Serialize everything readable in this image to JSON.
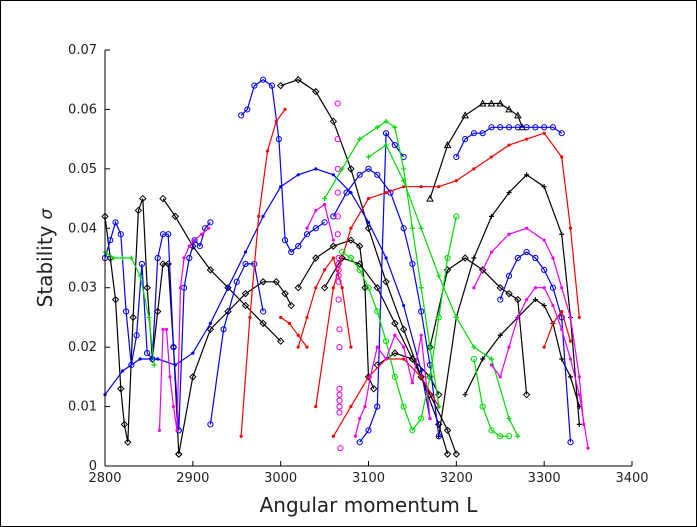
{
  "chart_data": {
    "type": "line",
    "title": "",
    "xlabel": "Angular momentum L",
    "ylabel_text": "Stability",
    "ylabel_symbol": "σ",
    "xlim": [
      2800,
      3400
    ],
    "ylim": [
      0,
      0.07
    ],
    "xticks": [
      "2800",
      "2900",
      "3000",
      "3100",
      "3200",
      "3300",
      "3400"
    ],
    "yticks": [
      "0",
      "0.01",
      "0.02",
      "0.03",
      "0.04",
      "0.05",
      "0.06",
      "0.07"
    ],
    "grid": false,
    "legend": "none",
    "series": [
      {
        "color": "#000000",
        "marker": "diamond",
        "x": [
          2800,
          2806,
          2812,
          2818,
          2822,
          2826,
          2832,
          2838,
          2843,
          2848,
          2854,
          2860,
          2866,
          2872,
          2878,
          2884
        ],
        "y": [
          0.042,
          0.035,
          0.028,
          0.013,
          0.007,
          0.004,
          0.025,
          0.043,
          0.045,
          0.03,
          0.018,
          0.026,
          0.034,
          0.034,
          0.02,
          0.002
        ]
      },
      {
        "color": "#000000",
        "marker": "diamond",
        "x": [
          2866,
          2880,
          2900,
          2920,
          2940,
          2960,
          2980,
          3000
        ],
        "y": [
          0.045,
          0.042,
          0.037,
          0.033,
          0.03,
          0.027,
          0.024,
          0.021
        ]
      },
      {
        "color": "#000000",
        "marker": "diamond",
        "x": [
          2884,
          2900,
          2920,
          2940,
          2960,
          2980,
          2995,
          3005,
          3012
        ],
        "y": [
          0.002,
          0.015,
          0.023,
          0.026,
          0.029,
          0.031,
          0.031,
          0.029,
          0.027
        ]
      },
      {
        "color": "#000000",
        "marker": "diamond",
        "x": [
          3000,
          3020,
          3040,
          3060,
          3080,
          3100,
          3120,
          3140,
          3160,
          3180,
          3190
        ],
        "y": [
          0.064,
          0.065,
          0.063,
          0.058,
          0.05,
          0.04,
          0.031,
          0.023,
          0.015,
          0.007,
          0.002
        ]
      },
      {
        "color": "#000000",
        "marker": "diamond",
        "x": [
          3020,
          3040,
          3060,
          3080,
          3090,
          3096,
          3100,
          3106
        ],
        "y": [
          0.03,
          0.035,
          0.037,
          0.038,
          0.037,
          0.03,
          0.015,
          0.013
        ]
      },
      {
        "color": "#000000",
        "marker": "diamond",
        "x": [
          3050,
          3070,
          3090,
          3110,
          3130,
          3150,
          3170,
          3190,
          3200
        ],
        "y": [
          0.03,
          0.035,
          0.034,
          0.03,
          0.024,
          0.018,
          0.012,
          0.006,
          0.002
        ]
      },
      {
        "color": "#000000",
        "marker": "diamond",
        "x": [
          3110,
          3130,
          3150,
          3170,
          3180
        ],
        "y": [
          0.017,
          0.019,
          0.018,
          0.015,
          0.012
        ]
      },
      {
        "color": "#000000",
        "marker": "diamond",
        "x": [
          3170,
          3190,
          3210,
          3230,
          3250,
          3260,
          3270,
          3280
        ],
        "y": [
          0.02,
          0.033,
          0.035,
          0.033,
          0.03,
          0.029,
          0.028,
          0.012
        ]
      },
      {
        "color": "#000000",
        "marker": "triangle",
        "x": [
          3170,
          3190,
          3210,
          3230,
          3240,
          3250,
          3260,
          3270,
          3275
        ],
        "y": [
          0.045,
          0.054,
          0.059,
          0.061,
          0.061,
          0.061,
          0.06,
          0.059,
          0.057
        ]
      },
      {
        "color": "#000000",
        "marker": "plus",
        "x": [
          3180,
          3200,
          3220,
          3240,
          3260,
          3280,
          3300,
          3320,
          3330,
          3340
        ],
        "y": [
          0.005,
          0.025,
          0.035,
          0.042,
          0.046,
          0.049,
          0.047,
          0.039,
          0.025,
          0.007
        ]
      },
      {
        "color": "#000000",
        "marker": "plus",
        "x": [
          3210,
          3230,
          3250,
          3270,
          3290,
          3300,
          3310,
          3320,
          3330,
          3340
        ],
        "y": [
          0.012,
          0.018,
          0.022,
          0.025,
          0.028,
          0.027,
          0.024,
          0.018,
          0.015,
          0.01
        ]
      },
      {
        "color": "#0000ff",
        "marker": "circle",
        "x": [
          2800,
          2806,
          2812,
          2818,
          2824,
          2830,
          2836,
          2842,
          2848,
          2854,
          2860,
          2866,
          2872,
          2878,
          2884
        ],
        "y": [
          0.035,
          0.038,
          0.041,
          0.039,
          0.026,
          0.017,
          0.022,
          0.034,
          0.019,
          0.018,
          0.035,
          0.039,
          0.039,
          0.02,
          0.006
        ]
      },
      {
        "color": "#0000ff",
        "marker": "circle",
        "x": [
          2884,
          2890,
          2896,
          2902,
          2908,
          2914,
          2920
        ],
        "y": [
          0.006,
          0.03,
          0.035,
          0.038,
          0.037,
          0.04,
          0.041
        ]
      },
      {
        "color": "#0000ff",
        "marker": "dot",
        "x": [
          2800,
          2820,
          2840,
          2860,
          2880,
          2900,
          2920,
          2940,
          2960,
          2980,
          3000,
          3020,
          3040,
          3060,
          3080,
          3100,
          3120,
          3140,
          3160,
          3170
        ],
        "y": [
          0.012,
          0.016,
          0.018,
          0.018,
          0.017,
          0.019,
          0.024,
          0.03,
          0.036,
          0.042,
          0.047,
          0.049,
          0.05,
          0.049,
          0.046,
          0.041,
          0.035,
          0.027,
          0.016,
          0.008
        ]
      },
      {
        "color": "#0000ff",
        "marker": "circle",
        "x": [
          2920,
          2935,
          2950,
          2960,
          2970,
          2980
        ],
        "y": [
          0.007,
          0.023,
          0.031,
          0.034,
          0.034,
          0.026
        ]
      },
      {
        "color": "#0000ff",
        "marker": "circle",
        "x": [
          2955,
          2962,
          2970,
          2980,
          2990,
          2998,
          3005,
          3012,
          3020,
          3030,
          3040,
          3050
        ],
        "y": [
          0.059,
          0.06,
          0.064,
          0.065,
          0.064,
          0.055,
          0.038,
          0.036,
          0.037,
          0.039,
          0.04,
          0.041
        ]
      },
      {
        "color": "#0000ff",
        "marker": "circle",
        "x": [
          3060,
          3075,
          3090,
          3100,
          3110,
          3125,
          3140,
          3150,
          3160,
          3170,
          3180
        ],
        "y": [
          0.042,
          0.046,
          0.049,
          0.05,
          0.049,
          0.046,
          0.04,
          0.034,
          0.026,
          0.017,
          0.005
        ]
      },
      {
        "color": "#0000ff",
        "marker": "circle",
        "x": [
          3090,
          3100,
          3110,
          3120,
          3130,
          3140
        ],
        "y": [
          0.004,
          0.006,
          0.01,
          0.056,
          0.054,
          0.052
        ]
      },
      {
        "color": "#0000ff",
        "marker": "circle",
        "x": [
          3200,
          3210,
          3220,
          3230,
          3240,
          3250,
          3260,
          3270,
          3280,
          3290,
          3300,
          3310,
          3320
        ],
        "y": [
          0.052,
          0.055,
          0.056,
          0.056,
          0.057,
          0.057,
          0.057,
          0.057,
          0.057,
          0.057,
          0.057,
          0.057,
          0.056
        ]
      },
      {
        "color": "#0000ff",
        "marker": "circle",
        "x": [
          3250,
          3260,
          3270,
          3280,
          3290,
          3300,
          3310,
          3320,
          3330
        ],
        "y": [
          0.028,
          0.032,
          0.035,
          0.036,
          0.035,
          0.033,
          0.03,
          0.025,
          0.004
        ]
      },
      {
        "color": "#ff0000",
        "marker": "dot",
        "x": [
          2955,
          2965,
          2975,
          2985,
          2995,
          3005
        ],
        "y": [
          0.005,
          0.025,
          0.042,
          0.053,
          0.058,
          0.06
        ]
      },
      {
        "color": "#ff0000",
        "marker": "dot",
        "x": [
          3000,
          3010,
          3020,
          3030
        ],
        "y": [
          0.025,
          0.024,
          0.022,
          0.02
        ]
      },
      {
        "color": "#ff0000",
        "marker": "dot",
        "x": [
          3020,
          3030,
          3040,
          3050,
          3060,
          3070,
          3080
        ],
        "y": [
          0.02,
          0.025,
          0.03,
          0.033,
          0.035,
          0.03,
          0.02
        ]
      },
      {
        "color": "#ff0000",
        "marker": "dot",
        "x": [
          3040,
          3060,
          3080,
          3100,
          3120,
          3140,
          3160,
          3180,
          3200,
          3220,
          3240,
          3260,
          3280,
          3300,
          3320,
          3330,
          3340
        ],
        "y": [
          0.01,
          0.03,
          0.04,
          0.045,
          0.046,
          0.047,
          0.047,
          0.047,
          0.048,
          0.05,
          0.052,
          0.054,
          0.055,
          0.056,
          0.052,
          0.04,
          0.025
        ]
      },
      {
        "color": "#ff0000",
        "marker": "dot",
        "x": [
          3060,
          3080,
          3100,
          3120,
          3140,
          3160,
          3180
        ],
        "y": [
          0.005,
          0.01,
          0.015,
          0.018,
          0.018,
          0.015,
          0.01
        ]
      },
      {
        "color": "#ff0000",
        "marker": "dot",
        "x": [
          3300,
          3310,
          3320,
          3330
        ],
        "y": [
          0.02,
          0.024,
          0.026,
          0.021
        ]
      },
      {
        "color": "#00dd00",
        "marker": "plus",
        "x": [
          2800,
          2810,
          2820,
          2830,
          2840,
          2850,
          2856
        ],
        "y": [
          0.036,
          0.035,
          0.035,
          0.035,
          0.032,
          0.025,
          0.017
        ]
      },
      {
        "color": "#00dd00",
        "marker": "plus",
        "x": [
          3050,
          3070,
          3090,
          3110,
          3120,
          3130,
          3140,
          3150,
          3160,
          3170,
          3180
        ],
        "y": [
          0.045,
          0.05,
          0.055,
          0.057,
          0.058,
          0.057,
          0.05,
          0.04,
          0.03,
          0.02,
          0.01
        ]
      },
      {
        "color": "#00dd00",
        "marker": "circle",
        "x": [
          3070,
          3080,
          3090,
          3100,
          3110,
          3120,
          3130,
          3140,
          3150,
          3160,
          3170,
          3180,
          3190,
          3200
        ],
        "y": [
          0.036,
          0.035,
          0.033,
          0.03,
          0.026,
          0.021,
          0.015,
          0.01,
          0.006,
          0.008,
          0.015,
          0.025,
          0.035,
          0.042
        ]
      },
      {
        "color": "#00dd00",
        "marker": "plus",
        "x": [
          3100,
          3120,
          3140,
          3160,
          3180,
          3200,
          3220,
          3240,
          3260,
          3270
        ],
        "y": [
          0.052,
          0.054,
          0.048,
          0.04,
          0.032,
          0.025,
          0.02,
          0.018,
          0.008,
          0.005
        ]
      },
      {
        "color": "#00dd00",
        "marker": "circle",
        "x": [
          3220,
          3230,
          3240,
          3250,
          3260
        ],
        "y": [
          0.018,
          0.01,
          0.006,
          0.005,
          0.005
        ]
      },
      {
        "color": "#ee00ee",
        "marker": "dot",
        "x": [
          2862,
          2866,
          2870,
          2874,
          2878,
          2882,
          2886,
          2890,
          2896,
          2902,
          2910,
          2918
        ],
        "y": [
          0.006,
          0.023,
          0.023,
          0.015,
          0.01,
          0.006,
          0.03,
          0.035,
          0.037,
          0.038,
          0.039,
          0.04
        ]
      },
      {
        "color": "#ee00ee",
        "marker": "dot",
        "x": [
          3030,
          3040,
          3050,
          3060
        ],
        "y": [
          0.04,
          0.043,
          0.044,
          0.038
        ]
      },
      {
        "color": "#ee00ee",
        "marker": "dot",
        "x": [
          3085,
          3090,
          3096,
          3102,
          3110,
          3120,
          3130,
          3140,
          3150,
          3160,
          3170
        ],
        "y": [
          0.005,
          0.008,
          0.01,
          0.015,
          0.02,
          0.018,
          0.022,
          0.02,
          0.014,
          0.022,
          0.008
        ]
      },
      {
        "color": "#ee00ee",
        "marker": "dot",
        "x": [
          3220,
          3240,
          3260,
          3280,
          3300,
          3310,
          3320,
          3330,
          3340,
          3345
        ],
        "y": [
          0.03,
          0.036,
          0.039,
          0.04,
          0.038,
          0.035,
          0.03,
          0.025,
          0.015,
          0.007
        ]
      },
      {
        "color": "#ee00ee",
        "marker": "dot",
        "x": [
          3240,
          3250,
          3260,
          3270,
          3280,
          3290,
          3300,
          3310,
          3320,
          3330,
          3340,
          3350
        ],
        "y": [
          0.017,
          0.015,
          0.02,
          0.025,
          0.028,
          0.03,
          0.03,
          0.027,
          0.023,
          0.018,
          0.012,
          0.003
        ]
      },
      {
        "color": "#ee00ee",
        "marker": "circle",
        "line": false,
        "x": [
          3065,
          3065,
          3065,
          3065,
          3065,
          3065,
          3066,
          3066,
          3066,
          3066,
          3066,
          3066,
          3067,
          3067,
          3067,
          3067,
          3067,
          3067,
          3067,
          3068
        ],
        "y": [
          0.061,
          0.055,
          0.05,
          0.046,
          0.042,
          0.039,
          0.035,
          0.034,
          0.033,
          0.032,
          0.031,
          0.028,
          0.023,
          0.02,
          0.013,
          0.012,
          0.011,
          0.01,
          0.009,
          0.003
        ]
      }
    ]
  }
}
